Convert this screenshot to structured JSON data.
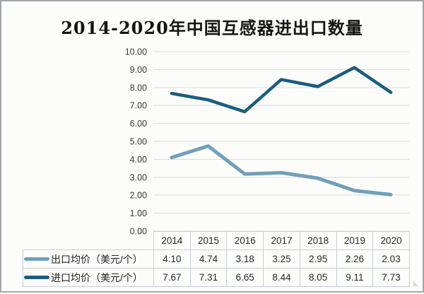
{
  "title": "2014-2020年中国互感器进出口数量",
  "colors": {
    "export_line": "#709fbc",
    "import_line": "#1a5d7e",
    "gridline": "#dbdbdb",
    "table_border": "#c7cdd3",
    "axis_text": "#3a3a3a",
    "card_border": "#a3a6a8",
    "background": "#fcfcfb"
  },
  "chart_data": {
    "type": "line",
    "title": "2014-2020年中国互感器进出口数量",
    "categories": [
      "2014",
      "2015",
      "2016",
      "2017",
      "2018",
      "2019",
      "2020"
    ],
    "series": [
      {
        "name": "出口均价（美元/个）",
        "key": "export-avg-price",
        "values": [
          4.1,
          4.74,
          3.18,
          3.25,
          2.95,
          2.26,
          2.03
        ],
        "color": "#709fbc",
        "stroke_width": 5
      },
      {
        "name": "进口均价（美元/个）",
        "key": "import-avg-price",
        "values": [
          7.67,
          7.31,
          6.65,
          8.44,
          8.05,
          9.11,
          7.73
        ],
        "color": "#1a5d7e",
        "stroke_width": 4.5
      }
    ],
    "xlabel": "",
    "ylabel": "",
    "ylim": [
      0,
      10
    ],
    "ytick_step": 1,
    "ytick_decimals": 2,
    "grid": true,
    "legend_position": "data-table-left",
    "data_table_shown": true
  }
}
